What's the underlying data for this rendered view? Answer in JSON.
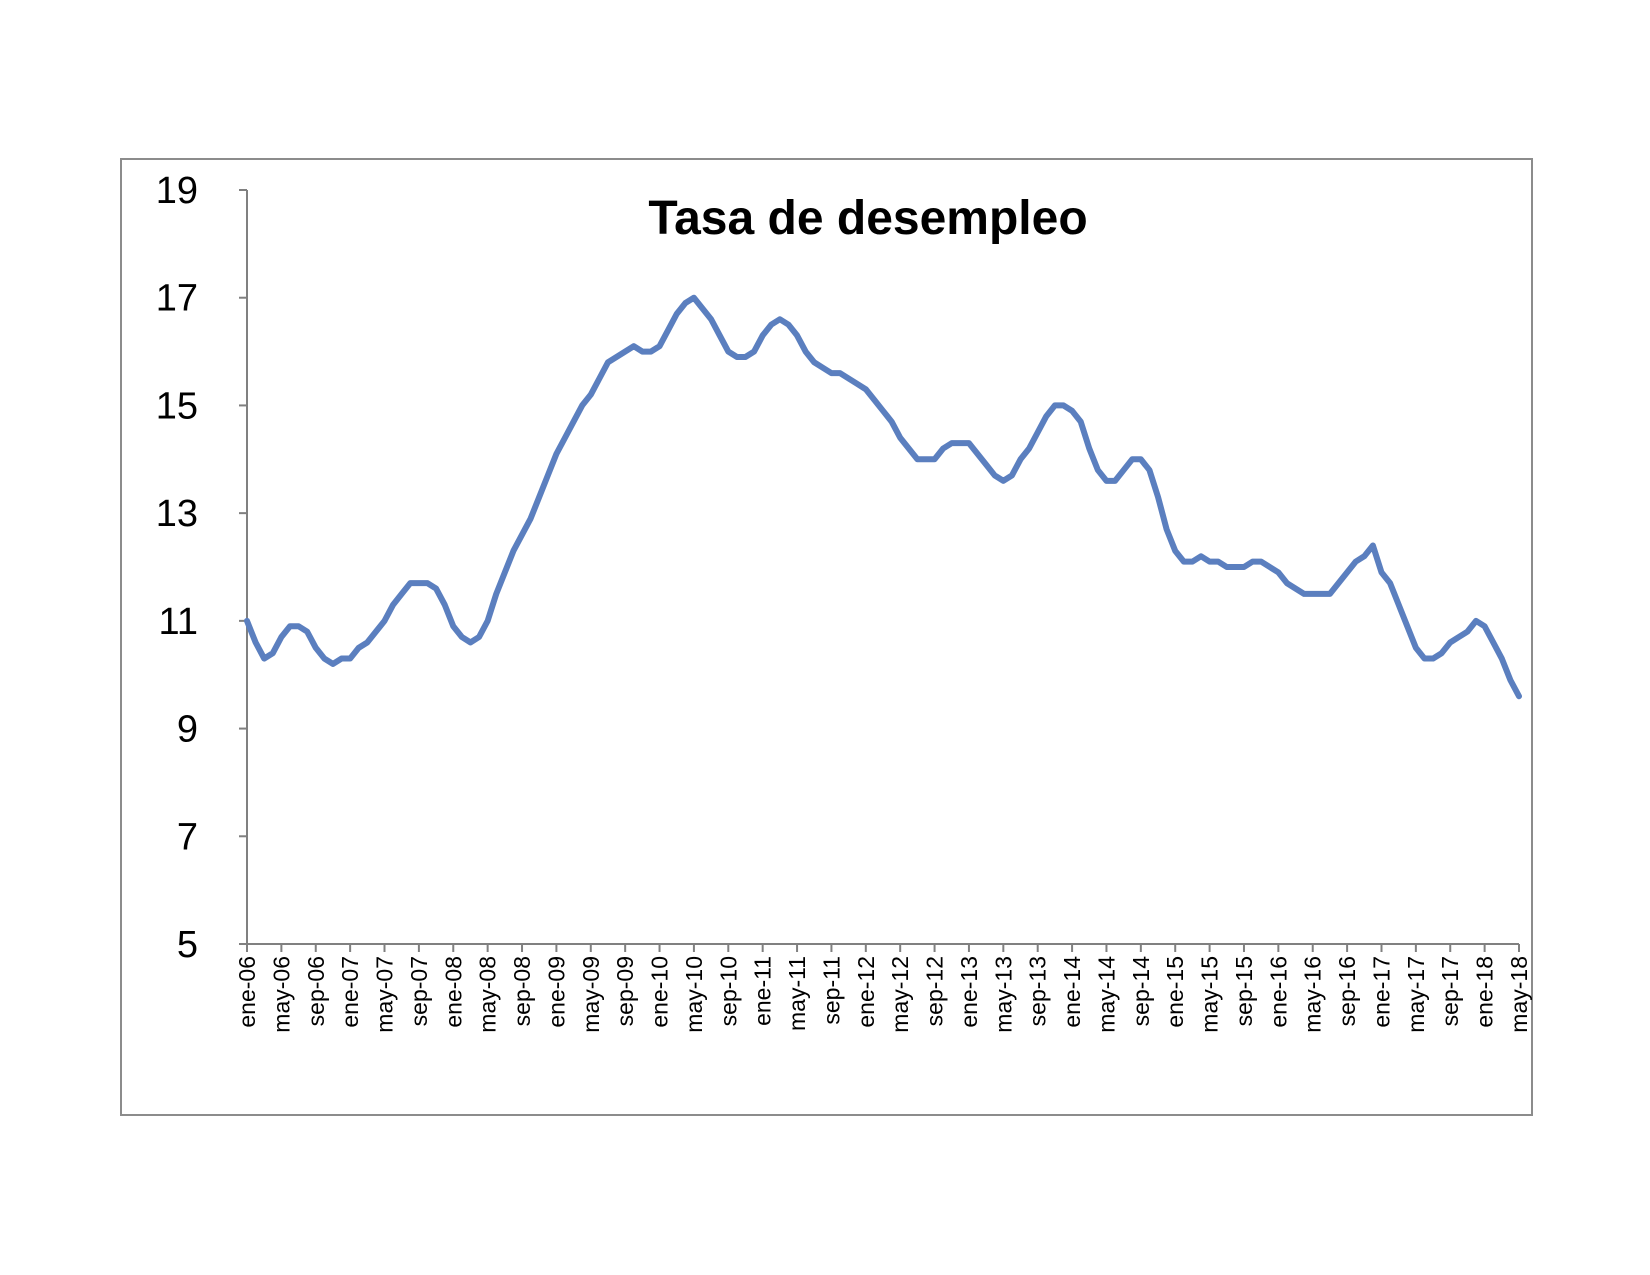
{
  "chart_data": {
    "type": "line",
    "title": "Tasa de desempleo",
    "xlabel": "",
    "ylabel": "",
    "ylim": [
      5,
      19
    ],
    "yticks": [
      5,
      7,
      9,
      11,
      13,
      15,
      17,
      19
    ],
    "grid": false,
    "legend": "none",
    "x_tick_labels": [
      "ene-06",
      "may-06",
      "sep-06",
      "ene-07",
      "may-07",
      "sep-07",
      "ene-08",
      "may-08",
      "sep-08",
      "ene-09",
      "may-09",
      "sep-09",
      "ene-10",
      "may-10",
      "sep-10",
      "ene-11",
      "may-11",
      "sep-11",
      "ene-12",
      "may-12",
      "sep-12",
      "ene-13",
      "may-13",
      "sep-13",
      "ene-14",
      "may-14",
      "sep-14",
      "ene-15",
      "may-15",
      "sep-15",
      "ene-16",
      "may-16",
      "sep-16",
      "ene-17",
      "may-17",
      "sep-17",
      "ene-18",
      "may-18"
    ],
    "x_start": "ene-06",
    "x_end": "may-18",
    "series": [
      {
        "color": "#5b7fbf",
        "values": [
          11.0,
          10.6,
          10.3,
          10.4,
          10.7,
          10.9,
          10.9,
          10.8,
          10.5,
          10.3,
          10.2,
          10.3,
          10.3,
          10.5,
          10.6,
          10.8,
          11.0,
          11.3,
          11.5,
          11.7,
          11.7,
          11.7,
          11.6,
          11.3,
          10.9,
          10.7,
          10.6,
          10.7,
          11.0,
          11.5,
          11.9,
          12.3,
          12.6,
          12.9,
          13.3,
          13.7,
          14.1,
          14.4,
          14.7,
          15.0,
          15.2,
          15.5,
          15.8,
          15.9,
          16.0,
          16.1,
          16.0,
          16.0,
          16.1,
          16.4,
          16.7,
          16.9,
          17.0,
          16.8,
          16.6,
          16.3,
          16.0,
          15.9,
          15.9,
          16.0,
          16.3,
          16.5,
          16.6,
          16.5,
          16.3,
          16.0,
          15.8,
          15.7,
          15.6,
          15.6,
          15.5,
          15.4,
          15.3,
          15.1,
          14.9,
          14.7,
          14.4,
          14.2,
          14.0,
          14.0,
          14.0,
          14.2,
          14.3,
          14.3,
          14.3,
          14.1,
          13.9,
          13.7,
          13.6,
          13.7,
          14.0,
          14.2,
          14.5,
          14.8,
          15.0,
          15.0,
          14.9,
          14.7,
          14.2,
          13.8,
          13.6,
          13.6,
          13.8,
          14.0,
          14.0,
          13.8,
          13.3,
          12.7,
          12.3,
          12.1,
          12.1,
          12.2,
          12.1,
          12.1,
          12.0,
          12.0,
          12.0,
          12.1,
          12.1,
          12.0,
          11.9,
          11.7,
          11.6,
          11.5,
          11.5,
          11.5,
          11.5,
          11.7,
          11.9,
          12.1,
          12.2,
          12.4,
          11.9,
          11.7,
          11.3,
          10.9,
          10.5,
          10.3,
          10.3,
          10.4,
          10.6,
          10.7,
          10.8,
          11.0,
          10.9,
          10.6,
          10.3,
          9.9,
          9.6
        ]
      }
    ]
  },
  "colors": {
    "line": "#5b7fbf",
    "axis": "#808080",
    "border": "#8c8c8c"
  }
}
